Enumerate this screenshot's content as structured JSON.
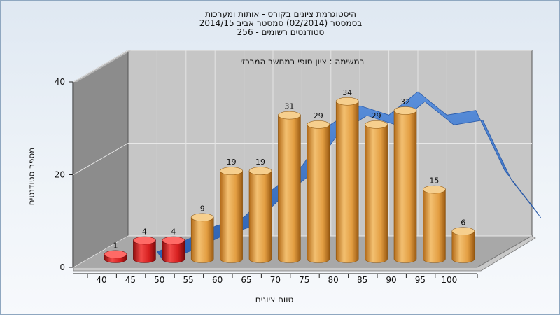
{
  "title_lines": [
    "היסטוגרמת ציונים בקורס - אותות ומערכות",
    "בסמסטר  (02/2014)  סמסטר אביב 2014/15",
    "סטודנטים רשומים - 256"
  ],
  "colors": {
    "fail_bar": "#d8201f",
    "pass_bar": "#e6a24a",
    "curve": "#3a72c4",
    "back_wall": "#c6c6c6",
    "side_wall": "#8c8c8c",
    "floor": "#a9a9a9"
  },
  "chart_data": {
    "type": "bar",
    "subtitle": "במשימה : ציון סופי במחשב המרכזי",
    "xlabel": "טווח ציונים",
    "ylabel": "מספר סטודנטים",
    "ylim": [
      0,
      40
    ],
    "y_ticks": [
      "0",
      "20",
      "40"
    ],
    "x_ticks": [
      "40",
      "45",
      "50",
      "55",
      "60",
      "65",
      "70",
      "75",
      "80",
      "85",
      "90",
      "95",
      "100"
    ],
    "categories": [
      "40",
      "45",
      "50",
      "55",
      "60",
      "65",
      "70",
      "75",
      "80",
      "85",
      "90",
      "95",
      "100"
    ],
    "values": [
      1,
      4,
      4,
      9,
      19,
      19,
      31,
      29,
      34,
      29,
      32,
      15,
      6
    ],
    "bar_labels": [
      "1",
      "4",
      "4",
      "9",
      "19",
      "19",
      "31",
      "29",
      "34",
      "29",
      "32",
      "15",
      "6"
    ],
    "fail_bar_count": 3,
    "curve": [
      [
        45,
        0.5
      ],
      [
        50,
        3
      ],
      [
        55,
        6
      ],
      [
        60,
        8
      ],
      [
        65,
        14
      ],
      [
        70,
        19
      ],
      [
        75,
        28
      ],
      [
        80,
        32
      ],
      [
        85,
        30
      ],
      [
        90,
        35
      ],
      [
        95,
        30
      ],
      [
        100,
        31
      ],
      [
        105,
        18
      ],
      [
        110,
        10
      ]
    ],
    "grid": true
  }
}
